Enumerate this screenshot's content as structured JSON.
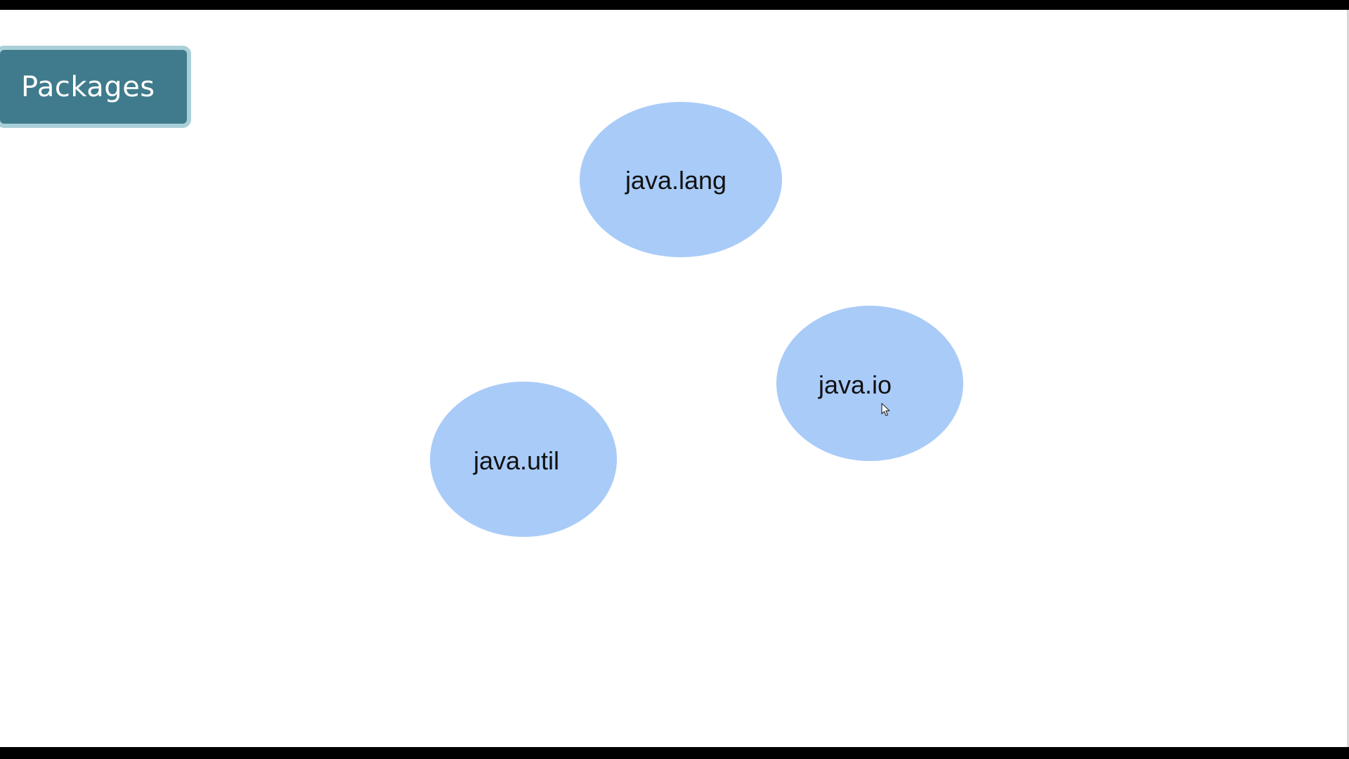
{
  "slide": {
    "title": "Packages",
    "packages": [
      {
        "label": "java.lang"
      },
      {
        "label": "java.io"
      },
      {
        "label": "java.util"
      }
    ]
  },
  "colors": {
    "title_bg": "#3f7b8c",
    "title_border": "#a9d0d8",
    "bubble_fill": "#a9cbf8",
    "frame": "#000000"
  },
  "icons": {
    "cursor": "mouse-pointer-icon"
  }
}
